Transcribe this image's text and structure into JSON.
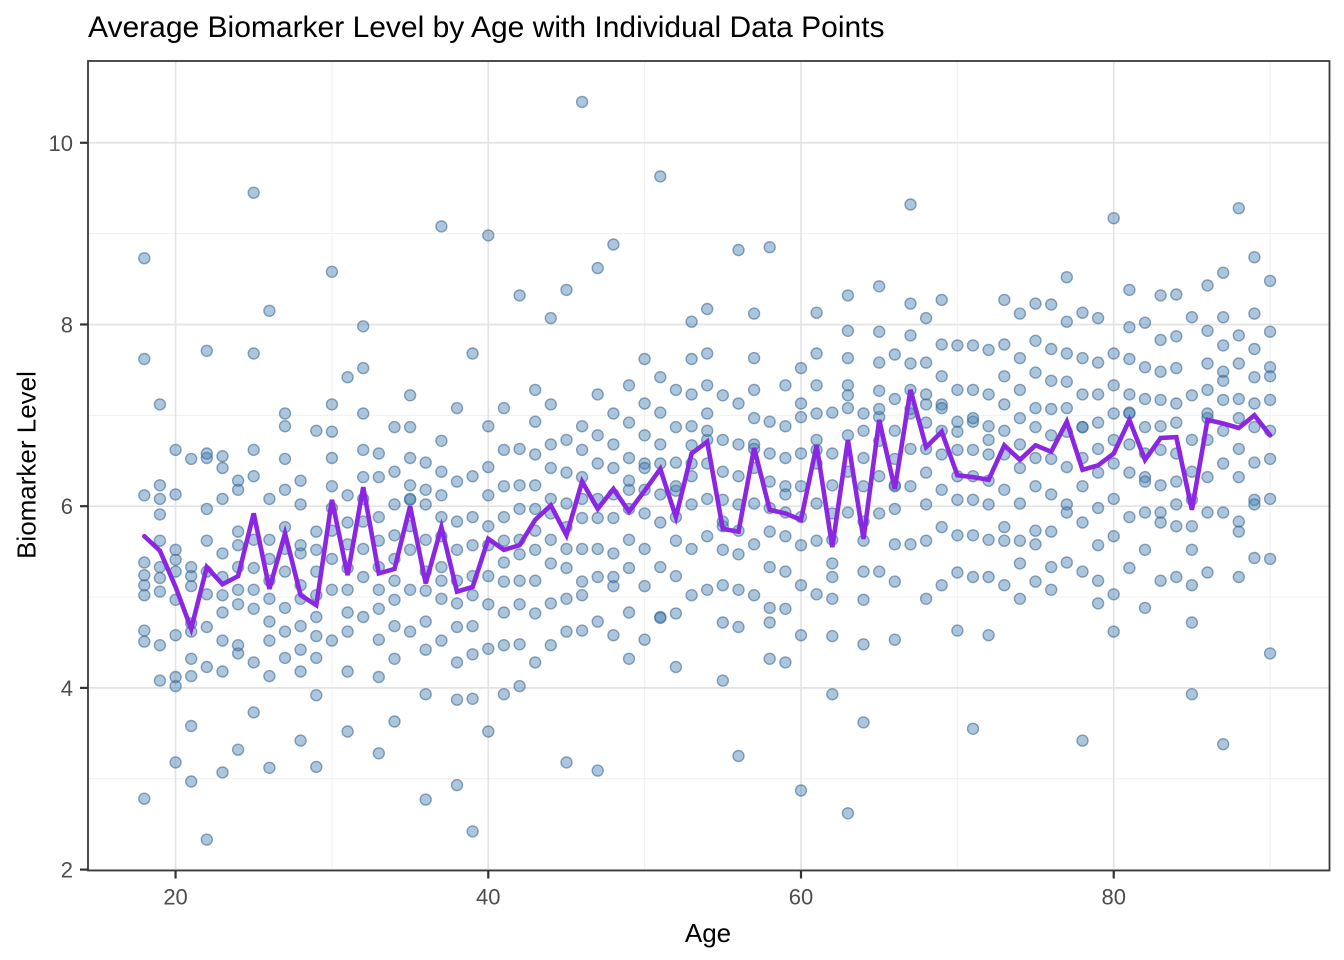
{
  "title": "Average Biomarker Level by Age with Individual Data Points",
  "x_axis": {
    "label": "Age"
  },
  "y_axis": {
    "label": "Biomarker Level"
  },
  "colors": {
    "point_fill": "#4682B4",
    "point_stroke": "#36608C",
    "line": "#8B27E3",
    "grid_major": "#E4E4E4",
    "grid_minor": "#F1F1F1",
    "panel_border": "#3A3A3A",
    "tick": "#333333",
    "tick_label": "#4D4D4D",
    "title_color": "#000000",
    "background": "#FFFFFF"
  },
  "chart_data": {
    "type": "scatter",
    "title": "Average Biomarker Level by Age with Individual Data Points",
    "xlabel": "Age",
    "ylabel": "Biomarker Level",
    "x_domain": [
      14.4,
      93.8
    ],
    "y_domain": [
      1.99,
      10.9
    ],
    "x_ticks": [
      20,
      40,
      60,
      80
    ],
    "x_minor": [
      30,
      50,
      70,
      90
    ],
    "y_ticks": [
      2,
      4,
      6,
      8,
      10
    ],
    "y_minor": [
      3,
      5,
      7,
      9
    ],
    "grid": "on",
    "legend": "none",
    "series": [
      {
        "name": "Individual Data Points",
        "type": "scatter",
        "points_by_age": {
          "18": [
            2.78,
            4.51,
            4.63,
            5.02,
            5.13,
            5.24,
            5.38,
            6.12,
            7.62,
            8.73
          ],
          "19": [
            4.08,
            4.47,
            5.06,
            5.21,
            5.33,
            5.62,
            5.91,
            6.08,
            6.23,
            7.12
          ],
          "20": [
            3.18,
            4.02,
            4.12,
            4.58,
            4.97,
            5.28,
            5.41,
            5.52,
            6.13,
            6.62
          ],
          "21": [
            2.97,
            3.58,
            4.13,
            4.32,
            4.62,
            4.71,
            5.12,
            5.23,
            5.33,
            6.52
          ],
          "22": [
            2.33,
            4.23,
            4.67,
            5.03,
            5.28,
            5.62,
            5.97,
            6.53,
            7.71,
            6.58
          ],
          "23": [
            3.07,
            4.18,
            4.52,
            4.83,
            5.02,
            5.22,
            5.48,
            6.08,
            6.42,
            6.55
          ],
          "24": [
            3.32,
            4.38,
            4.47,
            4.92,
            5.08,
            5.33,
            5.57,
            5.72,
            6.28,
            6.18
          ],
          "25": [
            3.73,
            4.28,
            4.87,
            5.08,
            5.32,
            5.63,
            6.33,
            6.62,
            7.68,
            9.45
          ],
          "26": [
            3.12,
            4.13,
            4.52,
            4.73,
            4.98,
            5.18,
            5.42,
            5.63,
            6.08,
            8.15
          ],
          "27": [
            4.33,
            4.62,
            4.88,
            5.28,
            5.53,
            5.77,
            6.18,
            6.52,
            6.88,
            7.02
          ],
          "28": [
            3.42,
            4.18,
            4.42,
            4.68,
            4.98,
            5.13,
            5.48,
            5.57,
            6.02,
            6.28
          ],
          "29": [
            3.13,
            3.92,
            4.33,
            4.57,
            4.78,
            5.02,
            5.28,
            5.52,
            5.72,
            6.83
          ],
          "30": [
            4.52,
            5.08,
            5.42,
            5.73,
            5.98,
            6.22,
            6.53,
            6.82,
            7.12,
            8.58
          ],
          "31": [
            3.52,
            4.18,
            4.62,
            4.83,
            5.08,
            5.32,
            5.58,
            5.82,
            6.12,
            7.42
          ],
          "32": [
            4.78,
            5.22,
            5.53,
            5.83,
            6.08,
            6.32,
            6.62,
            7.02,
            7.52,
            7.98
          ],
          "33": [
            3.28,
            4.12,
            4.53,
            4.87,
            5.08,
            5.33,
            5.62,
            5.88,
            6.32,
            6.58
          ],
          "34": [
            3.63,
            4.32,
            4.68,
            4.97,
            5.18,
            5.42,
            5.68,
            6.02,
            6.38,
            6.87
          ],
          "35": [
            4.62,
            5.08,
            5.52,
            5.78,
            6.07,
            6.23,
            6.53,
            6.87,
            7.22,
            6.08
          ],
          "36": [
            2.77,
            3.93,
            4.42,
            4.73,
            5.07,
            5.28,
            5.63,
            6.02,
            6.48,
            6.18
          ],
          "37": [
            4.52,
            4.98,
            5.33,
            5.67,
            5.88,
            6.12,
            6.38,
            6.72,
            5.18,
            9.08
          ],
          "38": [
            2.93,
            3.87,
            4.28,
            4.67,
            4.93,
            5.18,
            5.52,
            5.83,
            6.27,
            7.08
          ],
          "39": [
            2.42,
            3.88,
            4.37,
            4.68,
            5.02,
            5.23,
            5.57,
            5.88,
            6.33,
            7.68
          ],
          "40": [
            3.52,
            4.43,
            4.92,
            5.23,
            5.57,
            5.78,
            6.12,
            6.43,
            6.88,
            8.98
          ],
          "41": [
            3.93,
            4.47,
            4.83,
            5.17,
            5.38,
            5.62,
            5.88,
            6.22,
            6.62,
            7.08
          ],
          "42": [
            4.02,
            4.48,
            4.92,
            5.18,
            5.47,
            5.63,
            5.97,
            6.23,
            6.63,
            8.32
          ],
          "43": [
            4.28,
            4.82,
            5.18,
            5.52,
            5.73,
            5.97,
            6.23,
            6.57,
            6.93,
            7.28
          ],
          "44": [
            4.47,
            4.93,
            5.37,
            5.63,
            5.92,
            6.08,
            6.42,
            6.68,
            7.12,
            8.07
          ],
          "45": [
            3.18,
            4.62,
            4.98,
            5.32,
            5.53,
            5.77,
            6.03,
            6.37,
            6.73,
            8.38
          ],
          "46": [
            4.63,
            5.17,
            5.53,
            5.87,
            6.08,
            6.32,
            6.62,
            6.88,
            5.02,
            10.45
          ],
          "47": [
            3.09,
            4.73,
            5.22,
            5.53,
            5.87,
            6.08,
            6.47,
            6.78,
            7.23,
            8.62
          ],
          "48": [
            4.58,
            5.12,
            5.48,
            5.87,
            6.13,
            6.42,
            6.68,
            7.02,
            5.22,
            8.88
          ],
          "49": [
            4.32,
            4.83,
            5.32,
            5.63,
            5.97,
            6.18,
            6.53,
            6.92,
            7.33,
            6.28
          ],
          "50": [
            4.53,
            5.12,
            5.53,
            5.92,
            6.18,
            6.47,
            6.78,
            7.13,
            7.62,
            6.42
          ],
          "51": [
            4.78,
            5.33,
            5.82,
            6.13,
            6.47,
            6.68,
            7.03,
            7.42,
            9.63,
            4.77
          ],
          "52": [
            4.23,
            4.82,
            5.23,
            5.62,
            5.88,
            6.17,
            6.48,
            6.87,
            7.28,
            6.22
          ],
          "53": [
            5.02,
            5.53,
            6.02,
            6.33,
            6.67,
            6.88,
            7.23,
            7.62,
            8.03,
            6.47
          ],
          "54": [
            5.08,
            5.67,
            6.08,
            6.47,
            6.73,
            7.02,
            7.33,
            7.68,
            8.17,
            6.83
          ],
          "55": [
            4.08,
            4.72,
            5.13,
            5.52,
            5.78,
            6.07,
            6.38,
            6.73,
            7.22,
            5.83
          ],
          "56": [
            3.25,
            4.67,
            5.08,
            5.47,
            5.73,
            6.02,
            6.33,
            6.68,
            7.13,
            8.82
          ],
          "57": [
            5.02,
            5.58,
            6.03,
            6.42,
            6.68,
            6.97,
            7.28,
            7.63,
            8.12,
            6.63
          ],
          "58": [
            4.32,
            4.88,
            5.33,
            5.72,
            5.98,
            6.27,
            6.58,
            6.93,
            8.85,
            4.72
          ],
          "59": [
            4.28,
            4.87,
            5.28,
            5.67,
            5.93,
            6.22,
            6.53,
            6.88,
            7.33,
            6.13
          ],
          "60": [
            2.87,
            4.58,
            5.13,
            5.57,
            5.88,
            6.22,
            6.58,
            6.98,
            7.52,
            7.13
          ],
          "61": [
            5.03,
            5.62,
            6.03,
            6.47,
            6.73,
            7.02,
            7.33,
            7.68,
            8.13,
            6.62
          ],
          "62": [
            3.93,
            4.57,
            4.98,
            5.37,
            5.63,
            5.92,
            6.23,
            6.58,
            7.03,
            5.22
          ],
          "63": [
            2.62,
            5.93,
            6.38,
            6.78,
            7.08,
            7.33,
            7.63,
            7.93,
            8.32,
            7.22
          ],
          "64": [
            3.62,
            4.48,
            4.97,
            5.28,
            5.62,
            5.83,
            6.22,
            6.53,
            7.02,
            6.83
          ],
          "65": [
            5.28,
            5.92,
            6.33,
            6.72,
            6.98,
            7.27,
            7.58,
            7.92,
            8.42,
            7.07
          ],
          "66": [
            4.53,
            5.17,
            5.58,
            5.97,
            6.23,
            6.52,
            6.83,
            7.18,
            7.67,
            6.22
          ],
          "67": [
            5.58,
            6.22,
            6.63,
            7.02,
            7.28,
            7.57,
            7.88,
            8.23,
            9.32,
            7.07
          ],
          "68": [
            4.98,
            5.62,
            6.02,
            6.37,
            6.63,
            6.92,
            7.23,
            7.58,
            8.07,
            7.12
          ],
          "69": [
            5.13,
            5.77,
            6.18,
            6.57,
            6.83,
            7.12,
            7.43,
            7.78,
            8.27,
            7.08
          ],
          "70": [
            4.63,
            5.27,
            5.68,
            6.07,
            6.33,
            6.62,
            6.93,
            7.28,
            7.77,
            6.82
          ],
          "71": [
            3.55,
            5.22,
            5.68,
            6.07,
            6.33,
            6.62,
            6.93,
            7.28,
            7.77,
            6.97
          ],
          "72": [
            4.58,
            5.22,
            5.63,
            6.02,
            6.28,
            6.57,
            6.88,
            7.23,
            7.72,
            6.73
          ],
          "73": [
            5.13,
            5.77,
            6.18,
            6.57,
            6.83,
            7.12,
            7.43,
            7.78,
            8.27,
            5.62
          ],
          "74": [
            4.98,
            5.62,
            6.03,
            6.42,
            6.68,
            6.97,
            7.28,
            7.63,
            8.12,
            5.37
          ],
          "75": [
            5.17,
            5.73,
            6.22,
            6.53,
            6.87,
            7.08,
            7.47,
            7.82,
            8.23,
            5.58
          ],
          "76": [
            5.08,
            5.72,
            6.13,
            6.52,
            6.78,
            7.07,
            7.38,
            7.73,
            8.22,
            5.33
          ],
          "77": [
            5.38,
            6.02,
            6.43,
            6.82,
            7.08,
            7.37,
            7.68,
            8.03,
            8.52,
            5.93
          ],
          "78": [
            3.42,
            5.28,
            5.82,
            6.22,
            6.53,
            6.87,
            7.23,
            7.63,
            8.13,
            6.87
          ],
          "79": [
            4.93,
            5.57,
            5.98,
            6.37,
            6.63,
            6.92,
            7.23,
            7.58,
            8.07,
            5.18
          ],
          "80": [
            5.03,
            5.67,
            6.08,
            6.47,
            6.73,
            7.02,
            7.33,
            7.68,
            9.17,
            4.62
          ],
          "81": [
            5.32,
            5.88,
            6.37,
            6.68,
            7.02,
            7.23,
            7.62,
            7.97,
            8.38,
            7.03
          ],
          "82": [
            4.88,
            5.52,
            5.93,
            6.32,
            6.58,
            6.87,
            7.18,
            7.53,
            8.02,
            6.27
          ],
          "83": [
            5.18,
            5.82,
            6.23,
            6.62,
            6.88,
            7.17,
            7.48,
            7.83,
            8.32,
            5.93
          ],
          "84": [
            5.22,
            5.78,
            6.27,
            6.58,
            6.92,
            7.13,
            7.52,
            7.87,
            8.33,
            6.02
          ],
          "85": [
            3.93,
            4.72,
            5.13,
            5.52,
            5.78,
            6.07,
            6.38,
            6.73,
            7.22,
            8.08
          ],
          "86": [
            5.27,
            5.93,
            6.32,
            6.73,
            6.97,
            7.28,
            7.57,
            7.93,
            8.43,
            7.02
          ],
          "87": [
            3.38,
            5.93,
            6.47,
            6.83,
            7.17,
            7.38,
            7.77,
            8.08,
            8.57,
            7.48
          ],
          "88": [
            5.22,
            5.83,
            6.32,
            6.63,
            6.97,
            7.18,
            7.57,
            7.88,
            9.28,
            5.72
          ],
          "89": [
            5.43,
            6.07,
            6.48,
            6.87,
            7.13,
            7.42,
            7.73,
            8.12,
            8.74,
            6.02
          ],
          "90": [
            4.38,
            5.42,
            6.08,
            6.52,
            6.83,
            7.17,
            7.53,
            7.92,
            8.48,
            7.43
          ]
        }
      },
      {
        "name": "Average Biomarker Level",
        "type": "line",
        "ages": [
          18,
          19,
          20,
          21,
          22,
          23,
          24,
          25,
          26,
          27,
          28,
          29,
          30,
          31,
          32,
          33,
          34,
          35,
          36,
          37,
          38,
          39,
          40,
          41,
          42,
          43,
          44,
          45,
          46,
          47,
          48,
          49,
          50,
          51,
          52,
          53,
          54,
          55,
          56,
          57,
          58,
          59,
          60,
          61,
          62,
          63,
          64,
          65,
          66,
          67,
          68,
          69,
          70,
          71,
          72,
          73,
          74,
          75,
          76,
          77,
          78,
          79,
          80,
          81,
          82,
          83,
          84,
          85,
          86,
          87,
          88,
          89,
          90
        ],
        "values": [
          5.67,
          5.51,
          5.11,
          4.65,
          5.33,
          5.14,
          5.23,
          5.92,
          5.09,
          5.7,
          5.02,
          4.91,
          6.07,
          5.24,
          6.21,
          5.26,
          5.31,
          6.0,
          5.15,
          5.77,
          5.06,
          5.11,
          5.64,
          5.52,
          5.57,
          5.85,
          6.01,
          5.68,
          6.27,
          5.97,
          6.19,
          5.94,
          6.17,
          6.41,
          5.88,
          6.58,
          6.71,
          5.75,
          5.72,
          6.64,
          5.96,
          5.92,
          5.85,
          6.67,
          5.55,
          6.73,
          5.64,
          6.95,
          6.19,
          7.28,
          6.65,
          6.82,
          6.34,
          6.32,
          6.29,
          6.67,
          6.51,
          6.67,
          6.6,
          6.93,
          6.4,
          6.45,
          6.58,
          6.95,
          6.51,
          6.75,
          6.76,
          5.96,
          6.95,
          6.91,
          6.86,
          7.0,
          6.78
        ]
      }
    ]
  }
}
